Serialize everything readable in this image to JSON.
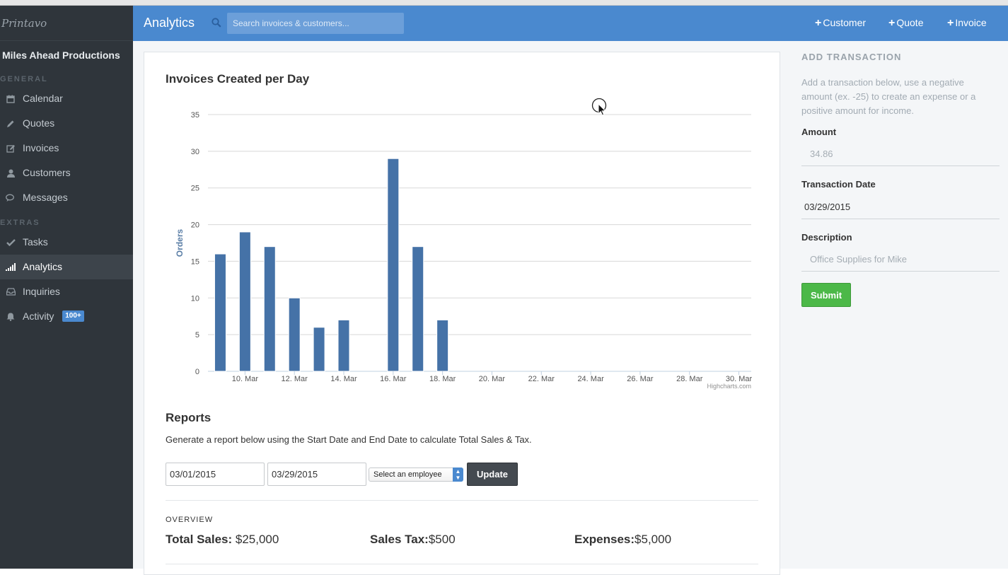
{
  "sidebar": {
    "brand": "Printavo",
    "company": "Miles Ahead Productions",
    "sections": [
      {
        "label": "GENERAL"
      },
      {
        "label": "EXTRAS"
      }
    ],
    "items": [
      {
        "label": "Calendar",
        "icon": "calendar-icon"
      },
      {
        "label": "Quotes",
        "icon": "pencil-icon"
      },
      {
        "label": "Invoices",
        "icon": "edit-icon"
      },
      {
        "label": "Customers",
        "icon": "user-icon"
      },
      {
        "label": "Messages",
        "icon": "comments-icon"
      },
      {
        "label": "Tasks",
        "icon": "check-icon"
      },
      {
        "label": "Analytics",
        "icon": "signal-icon",
        "active": true
      },
      {
        "label": "Inquiries",
        "icon": "inbox-icon"
      },
      {
        "label": "Activity",
        "icon": "bell-icon",
        "badge": "100+"
      }
    ]
  },
  "header": {
    "title": "Analytics",
    "search_placeholder": "Search invoices & customers...",
    "buttons": [
      {
        "label": "Customer"
      },
      {
        "label": "Quote"
      },
      {
        "label": "Invoice"
      }
    ]
  },
  "chart_data": {
    "type": "bar",
    "title": "Invoices Created per Day",
    "ylabel": "Orders",
    "xlabel": "",
    "ylim": [
      0,
      35
    ],
    "yticks": [
      0,
      5,
      10,
      15,
      20,
      25,
      30,
      35
    ],
    "xtick_labels": [
      "10. Mar",
      "12. Mar",
      "14. Mar",
      "16. Mar",
      "18. Mar",
      "20. Mar",
      "22. Mar",
      "24. Mar",
      "26. Mar",
      "28. Mar",
      "30. Mar"
    ],
    "categories": [
      "9. Mar",
      "10. Mar",
      "11. Mar",
      "12. Mar",
      "13. Mar",
      "14. Mar",
      "15. Mar",
      "16. Mar",
      "17. Mar",
      "18. Mar",
      "19. Mar",
      "20. Mar",
      "21. Mar",
      "22. Mar",
      "23. Mar",
      "24. Mar",
      "25. Mar",
      "26. Mar",
      "27. Mar",
      "28. Mar",
      "29. Mar",
      "30. Mar"
    ],
    "values": [
      16,
      19,
      17,
      10,
      6,
      7,
      0,
      29,
      17,
      7,
      0,
      0,
      0,
      0,
      0,
      0,
      0,
      0,
      0,
      0,
      0,
      0
    ],
    "credit": "Highcharts.com",
    "bar_color": "#4572a7",
    "grid": true,
    "legend": false
  },
  "reports": {
    "title": "Reports",
    "description": "Generate a report below using the Start Date and End Date to calculate Total Sales & Tax.",
    "start_date": "03/01/2015",
    "end_date": "03/29/2015",
    "employee_select": "Select an employee",
    "update_label": "Update",
    "overview_label": "OVERVIEW",
    "stats": [
      {
        "label": "Total Sales:",
        "value": " $25,000"
      },
      {
        "label": "Sales Tax:",
        "value": "$500"
      },
      {
        "label": "Expenses:",
        "value": "$5,000"
      }
    ]
  },
  "transaction": {
    "title": "ADD TRANSACTION",
    "description": "Add a transaction below, use a negative amount (ex. -25) to create an expense or a positive amount for income.",
    "amount_label": "Amount",
    "amount_placeholder": "34.86",
    "date_label": "Transaction Date",
    "date_value": "03/29/2015",
    "description_label": "Description",
    "description_placeholder": "Office Supplies for Mike",
    "submit_label": "Submit"
  },
  "colors": {
    "header": "#4a89cf",
    "sidebar": "#2f353b",
    "submit": "#4cb848",
    "bar": "#4572a7"
  }
}
